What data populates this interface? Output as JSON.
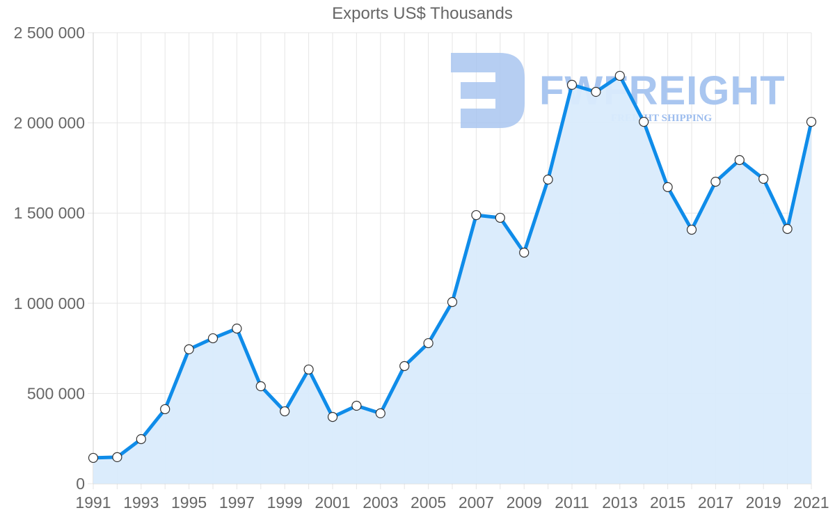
{
  "chart_data": {
    "type": "area",
    "title": "Exports US$ Thousands",
    "xlabel": "",
    "ylabel": "",
    "x": [
      1991,
      1992,
      1993,
      1994,
      1995,
      1996,
      1997,
      1998,
      1999,
      2000,
      2001,
      2002,
      2003,
      2004,
      2005,
      2006,
      2007,
      2008,
      2009,
      2010,
      2011,
      2012,
      2013,
      2014,
      2015,
      2016,
      2017,
      2018,
      2019,
      2020,
      2021
    ],
    "series": [
      {
        "name": "Exports US$ Thousands",
        "values": [
          143000,
          147000,
          247000,
          413000,
          745000,
          806000,
          860000,
          540000,
          401000,
          633000,
          370000,
          432000,
          390000,
          652000,
          779000,
          1007000,
          1489000,
          1474000,
          1281000,
          1686000,
          2211000,
          2172000,
          2261000,
          2006000,
          1644000,
          1408000,
          1674000,
          1794000,
          1690000,
          1412000,
          2006000
        ],
        "color": "#0f8ce9",
        "fill": "#d9ebfc"
      }
    ],
    "xtick_labels": [
      "1991",
      "1993",
      "1995",
      "1997",
      "1999",
      "2001",
      "2003",
      "2005",
      "2007",
      "2009",
      "2011",
      "2013",
      "2015",
      "2017",
      "2019",
      "2021"
    ],
    "ytick_labels": [
      "0",
      "500 000",
      "1 000 000",
      "1 500 000",
      "2 000 000",
      "2 500 000"
    ],
    "yticks": [
      0,
      500000,
      1000000,
      1500000,
      2000000,
      2500000
    ],
    "ylim": [
      0,
      2500000
    ],
    "xlim": [
      1991,
      2021
    ],
    "grid": true,
    "legend": "none"
  },
  "watermark": {
    "brand": "FWFREIGHT",
    "tagline": "FREIGHT SHIPPING"
  }
}
